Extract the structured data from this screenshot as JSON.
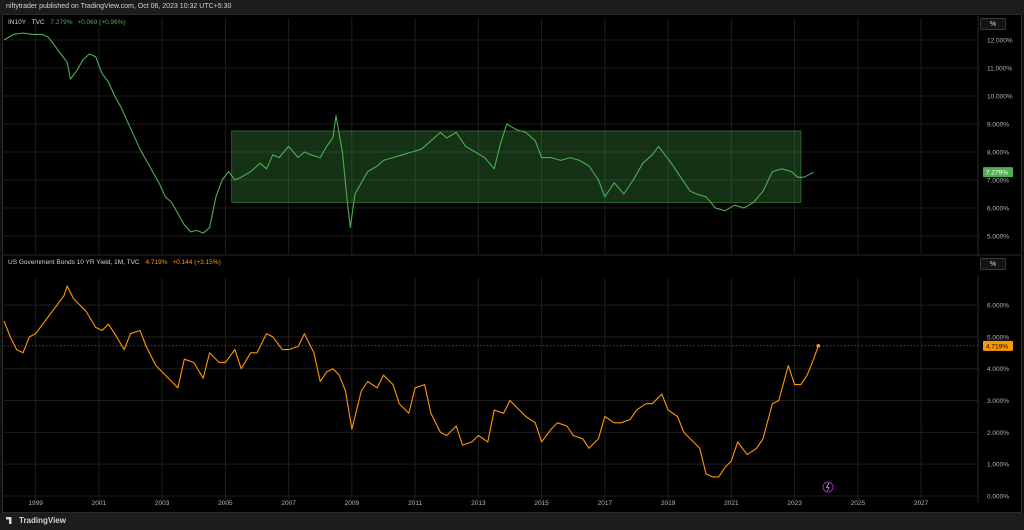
{
  "header": {
    "published_text": "niftytrader published on TradingView.com, Oct 06, 2023 10:32 UTC+5:30"
  },
  "footer": {
    "brand": "TradingView"
  },
  "scale_button": "%",
  "colors": {
    "green": "#4caf50",
    "orange": "#ff9800",
    "box": "#4caf50",
    "bg": "#000000",
    "grid": "#1e1e1e"
  },
  "chart_data": [
    {
      "type": "line",
      "name": "IN10Y",
      "legend": {
        "symbol": "IN10Y · TVC",
        "price": "7.279%",
        "change": "+0.069 (+0.96%)"
      },
      "last_label": "7.279%",
      "y_ticks": [
        "12.000%",
        "11.000%",
        "10.000%",
        "9.000%",
        "8.000%",
        "7.000%",
        "6.000%",
        "5.000%"
      ],
      "ylim": [
        4.5,
        12.5
      ],
      "range_box": {
        "x": [
          2005.2,
          2023.2
        ],
        "y": [
          6.2,
          8.75
        ]
      },
      "points": [
        [
          1998.0,
          12.0
        ],
        [
          1998.3,
          12.2
        ],
        [
          1998.6,
          12.25
        ],
        [
          1998.9,
          12.2
        ],
        [
          1999.2,
          12.2
        ],
        [
          1999.4,
          12.1
        ],
        [
          1999.6,
          11.8
        ],
        [
          1999.8,
          11.5
        ],
        [
          2000.0,
          11.2
        ],
        [
          2000.1,
          10.6
        ],
        [
          2000.3,
          10.9
        ],
        [
          2000.5,
          11.3
        ],
        [
          2000.7,
          11.5
        ],
        [
          2000.9,
          11.4
        ],
        [
          2001.1,
          10.8
        ],
        [
          2001.3,
          10.5
        ],
        [
          2001.5,
          10.0
        ],
        [
          2001.7,
          9.6
        ],
        [
          2001.9,
          9.1
        ],
        [
          2002.1,
          8.6
        ],
        [
          2002.3,
          8.1
        ],
        [
          2002.5,
          7.7
        ],
        [
          2002.7,
          7.3
        ],
        [
          2002.9,
          6.9
        ],
        [
          2003.1,
          6.4
        ],
        [
          2003.3,
          6.2
        ],
        [
          2003.5,
          5.8
        ],
        [
          2003.7,
          5.4
        ],
        [
          2003.9,
          5.15
        ],
        [
          2004.1,
          5.2
        ],
        [
          2004.3,
          5.1
        ],
        [
          2004.5,
          5.3
        ],
        [
          2004.7,
          6.4
        ],
        [
          2004.9,
          7.0
        ],
        [
          2005.1,
          7.3
        ],
        [
          2005.3,
          7.0
        ],
        [
          2005.5,
          7.1
        ],
        [
          2005.8,
          7.3
        ],
        [
          2006.1,
          7.6
        ],
        [
          2006.3,
          7.4
        ],
        [
          2006.5,
          7.9
        ],
        [
          2006.7,
          7.8
        ],
        [
          2007.0,
          8.2
        ],
        [
          2007.3,
          7.8
        ],
        [
          2007.5,
          8.0
        ],
        [
          2007.7,
          7.9
        ],
        [
          2008.0,
          7.8
        ],
        [
          2008.2,
          8.2
        ],
        [
          2008.4,
          8.5
        ],
        [
          2008.5,
          9.3
        ],
        [
          2008.7,
          8.0
        ],
        [
          2008.85,
          6.3
        ],
        [
          2008.95,
          5.3
        ],
        [
          2009.1,
          6.5
        ],
        [
          2009.3,
          6.9
        ],
        [
          2009.5,
          7.3
        ],
        [
          2009.8,
          7.5
        ],
        [
          2010.0,
          7.7
        ],
        [
          2010.3,
          7.8
        ],
        [
          2010.6,
          7.9
        ],
        [
          2010.9,
          8.0
        ],
        [
          2011.2,
          8.1
        ],
        [
          2011.5,
          8.4
        ],
        [
          2011.8,
          8.7
        ],
        [
          2012.0,
          8.5
        ],
        [
          2012.3,
          8.7
        ],
        [
          2012.6,
          8.2
        ],
        [
          2012.9,
          8.0
        ],
        [
          2013.2,
          7.8
        ],
        [
          2013.5,
          7.4
        ],
        [
          2013.7,
          8.3
        ],
        [
          2013.9,
          9.0
        ],
        [
          2014.2,
          8.8
        ],
        [
          2014.5,
          8.7
        ],
        [
          2014.8,
          8.4
        ],
        [
          2015.0,
          7.8
        ],
        [
          2015.3,
          7.8
        ],
        [
          2015.6,
          7.7
        ],
        [
          2015.9,
          7.8
        ],
        [
          2016.2,
          7.7
        ],
        [
          2016.5,
          7.5
        ],
        [
          2016.8,
          7.0
        ],
        [
          2017.0,
          6.4
        ],
        [
          2017.3,
          6.9
        ],
        [
          2017.6,
          6.5
        ],
        [
          2017.9,
          7.0
        ],
        [
          2018.2,
          7.6
        ],
        [
          2018.5,
          7.9
        ],
        [
          2018.7,
          8.2
        ],
        [
          2018.9,
          7.9
        ],
        [
          2019.1,
          7.6
        ],
        [
          2019.4,
          7.1
        ],
        [
          2019.7,
          6.6
        ],
        [
          2019.9,
          6.5
        ],
        [
          2020.2,
          6.4
        ],
        [
          2020.5,
          6.0
        ],
        [
          2020.8,
          5.9
        ],
        [
          2021.1,
          6.1
        ],
        [
          2021.4,
          6.0
        ],
        [
          2021.7,
          6.2
        ],
        [
          2022.0,
          6.6
        ],
        [
          2022.3,
          7.3
        ],
        [
          2022.6,
          7.4
        ],
        [
          2022.9,
          7.3
        ],
        [
          2023.1,
          7.1
        ],
        [
          2023.3,
          7.1
        ],
        [
          2023.6,
          7.28
        ]
      ]
    },
    {
      "type": "line",
      "name": "US Government Bonds 10 YR Yield",
      "legend": {
        "symbol": "US Government Bonds 10 YR Yield, 1M, TVC",
        "price": "4.719%",
        "change": "+0.144 (+3.15%)"
      },
      "last_label": "4.719%",
      "y_ticks": [
        "6.000%",
        "5.000%",
        "4.000%",
        "3.000%",
        "2.000%",
        "1.000%",
        "0.000%"
      ],
      "ylim": [
        0.0,
        6.6
      ],
      "points": [
        [
          1998.0,
          5.5
        ],
        [
          1998.2,
          5.0
        ],
        [
          1998.4,
          4.6
        ],
        [
          1998.6,
          4.5
        ],
        [
          1998.8,
          5.0
        ],
        [
          1999.0,
          5.1
        ],
        [
          1999.3,
          5.5
        ],
        [
          1999.6,
          5.9
        ],
        [
          1999.9,
          6.3
        ],
        [
          2000.0,
          6.6
        ],
        [
          2000.2,
          6.2
        ],
        [
          2000.4,
          6.0
        ],
        [
          2000.6,
          5.8
        ],
        [
          2000.9,
          5.3
        ],
        [
          2001.1,
          5.2
        ],
        [
          2001.3,
          5.4
        ],
        [
          2001.5,
          5.1
        ],
        [
          2001.8,
          4.6
        ],
        [
          2002.0,
          5.1
        ],
        [
          2002.3,
          5.2
        ],
        [
          2002.5,
          4.7
        ],
        [
          2002.8,
          4.1
        ],
        [
          2003.0,
          3.9
        ],
        [
          2003.3,
          3.6
        ],
        [
          2003.5,
          3.4
        ],
        [
          2003.7,
          4.3
        ],
        [
          2004.0,
          4.2
        ],
        [
          2004.3,
          3.7
        ],
        [
          2004.5,
          4.5
        ],
        [
          2004.8,
          4.2
        ],
        [
          2005.0,
          4.2
        ],
        [
          2005.3,
          4.6
        ],
        [
          2005.5,
          4.0
        ],
        [
          2005.8,
          4.5
        ],
        [
          2006.0,
          4.5
        ],
        [
          2006.3,
          5.1
        ],
        [
          2006.5,
          5.0
        ],
        [
          2006.8,
          4.6
        ],
        [
          2007.0,
          4.6
        ],
        [
          2007.3,
          4.7
        ],
        [
          2007.5,
          5.1
        ],
        [
          2007.8,
          4.5
        ],
        [
          2008.0,
          3.6
        ],
        [
          2008.2,
          3.9
        ],
        [
          2008.4,
          4.0
        ],
        [
          2008.6,
          3.8
        ],
        [
          2008.8,
          3.3
        ],
        [
          2009.0,
          2.1
        ],
        [
          2009.3,
          3.3
        ],
        [
          2009.5,
          3.6
        ],
        [
          2009.8,
          3.4
        ],
        [
          2010.0,
          3.8
        ],
        [
          2010.3,
          3.5
        ],
        [
          2010.5,
          2.9
        ],
        [
          2010.8,
          2.6
        ],
        [
          2011.0,
          3.4
        ],
        [
          2011.3,
          3.5
        ],
        [
          2011.5,
          2.6
        ],
        [
          2011.8,
          2.0
        ],
        [
          2012.0,
          1.9
        ],
        [
          2012.3,
          2.2
        ],
        [
          2012.5,
          1.6
        ],
        [
          2012.8,
          1.7
        ],
        [
          2013.0,
          1.9
        ],
        [
          2013.3,
          1.7
        ],
        [
          2013.5,
          2.7
        ],
        [
          2013.8,
          2.6
        ],
        [
          2014.0,
          3.0
        ],
        [
          2014.3,
          2.7
        ],
        [
          2014.5,
          2.5
        ],
        [
          2014.8,
          2.3
        ],
        [
          2015.0,
          1.7
        ],
        [
          2015.3,
          2.1
        ],
        [
          2015.5,
          2.3
        ],
        [
          2015.8,
          2.2
        ],
        [
          2016.0,
          1.9
        ],
        [
          2016.3,
          1.8
        ],
        [
          2016.5,
          1.5
        ],
        [
          2016.8,
          1.8
        ],
        [
          2017.0,
          2.5
        ],
        [
          2017.3,
          2.3
        ],
        [
          2017.5,
          2.3
        ],
        [
          2017.8,
          2.4
        ],
        [
          2018.0,
          2.7
        ],
        [
          2018.3,
          2.9
        ],
        [
          2018.5,
          2.9
        ],
        [
          2018.8,
          3.2
        ],
        [
          2019.0,
          2.7
        ],
        [
          2019.3,
          2.5
        ],
        [
          2019.5,
          2.0
        ],
        [
          2019.8,
          1.7
        ],
        [
          2020.0,
          1.5
        ],
        [
          2020.2,
          0.7
        ],
        [
          2020.4,
          0.6
        ],
        [
          2020.6,
          0.6
        ],
        [
          2020.8,
          0.9
        ],
        [
          2021.0,
          1.1
        ],
        [
          2021.2,
          1.7
        ],
        [
          2021.5,
          1.3
        ],
        [
          2021.8,
          1.5
        ],
        [
          2022.0,
          1.8
        ],
        [
          2022.3,
          2.9
        ],
        [
          2022.5,
          3.0
        ],
        [
          2022.8,
          4.1
        ],
        [
          2023.0,
          3.5
        ],
        [
          2023.2,
          3.5
        ],
        [
          2023.4,
          3.8
        ],
        [
          2023.6,
          4.3
        ],
        [
          2023.75,
          4.72
        ]
      ]
    }
  ],
  "x_axis": {
    "labels": [
      "1999",
      "2001",
      "2003",
      "2005",
      "2007",
      "2009",
      "2011",
      "2013",
      "2015",
      "2017",
      "2019",
      "2021",
      "2023",
      "2025",
      "2027"
    ],
    "xlim": [
      1998.0,
      2028.8
    ]
  }
}
